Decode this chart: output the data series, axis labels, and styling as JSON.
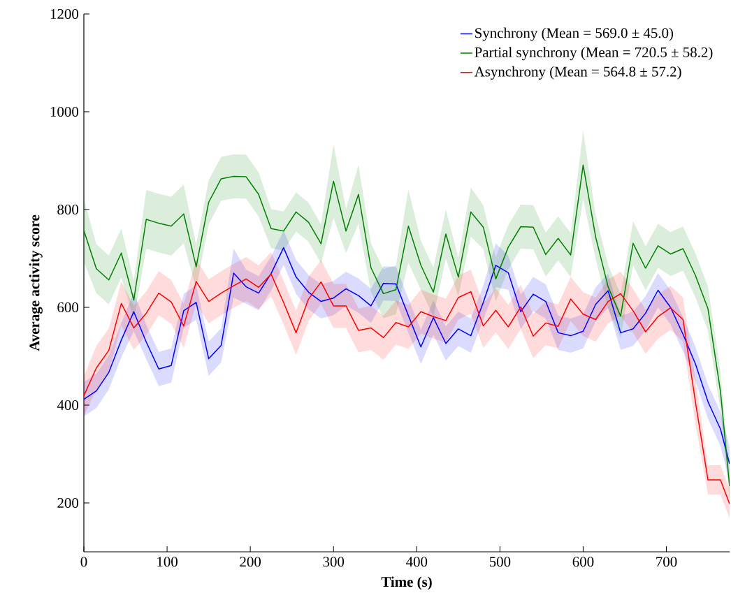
{
  "chart_data": {
    "type": "line",
    "xlabel": "Time (s)",
    "ylabel": "Average activity score",
    "x": [
      0,
      15,
      30,
      45,
      60,
      75,
      90,
      105,
      120,
      135,
      150,
      165,
      180,
      195,
      210,
      225,
      240,
      255,
      270,
      285,
      300,
      315,
      330,
      345,
      360,
      375,
      390,
      405,
      420,
      435,
      450,
      465,
      480,
      495,
      510,
      525,
      540,
      555,
      570,
      585,
      600,
      615,
      630,
      645,
      660,
      675,
      690,
      705,
      720,
      735,
      750,
      765,
      776
    ],
    "xlim": [
      0,
      776
    ],
    "ylim": [
      100,
      1200
    ],
    "xticks": [
      0,
      100,
      200,
      300,
      400,
      500,
      600,
      700
    ],
    "yticks": [
      200,
      400,
      600,
      800,
      1000,
      1200
    ],
    "grid": false,
    "legend": "top right",
    "line_style": "solid",
    "marker": "none",
    "series": [
      {
        "name": "Synchrony (Mean = 569.0 ± 45.0)",
        "color": "#0000ff",
        "values": [
          412,
          429,
          467,
          533,
          591,
          529,
          474,
          481,
          593,
          610,
          495,
          522,
          670,
          642,
          629,
          669,
          722,
          662,
          631,
          612,
          619,
          638,
          624,
          603,
          649,
          648,
          583,
          519,
          579,
          526,
          556,
          542,
          610,
          686,
          671,
          591,
          627,
          612,
          548,
          542,
          551,
          606,
          634,
          548,
          556,
          588,
          635,
          600,
          545,
          484,
          407,
          351,
          280
        ],
        "lower": [
          377,
          394,
          432,
          498,
          551,
          494,
          439,
          446,
          558,
          575,
          460,
          487,
          620,
          607,
          594,
          634,
          687,
          627,
          596,
          577,
          584,
          603,
          589,
          568,
          614,
          613,
          548,
          484,
          544,
          491,
          521,
          507,
          575,
          641,
          636,
          556,
          592,
          577,
          513,
          507,
          516,
          571,
          599,
          513,
          521,
          553,
          600,
          565,
          510,
          449,
          372,
          316,
          245
        ],
        "upper": [
          447,
          464,
          502,
          568,
          631,
          564,
          509,
          516,
          628,
          645,
          530,
          557,
          720,
          677,
          664,
          704,
          757,
          697,
          666,
          647,
          654,
          673,
          659,
          638,
          684,
          683,
          618,
          554,
          614,
          561,
          591,
          577,
          645,
          731,
          706,
          626,
          662,
          647,
          583,
          577,
          586,
          641,
          669,
          583,
          591,
          623,
          670,
          635,
          580,
          519,
          442,
          386,
          315
        ]
      },
      {
        "name": "Partial synchrony (Mean = 720.5 ± 58.2)",
        "color": "#008000",
        "values": [
          757,
          679,
          656,
          711,
          615,
          780,
          772,
          766,
          791,
          683,
          815,
          863,
          868,
          867,
          831,
          761,
          756,
          795,
          774,
          730,
          858,
          756,
          831,
          681,
          628,
          636,
          766,
          686,
          631,
          750,
          662,
          795,
          764,
          658,
          723,
          765,
          764,
          708,
          741,
          707,
          891,
          744,
          642,
          582,
          731,
          680,
          726,
          709,
          720,
          665,
          597,
          428,
          234
        ],
        "lower": [
          692,
          629,
          606,
          661,
          575,
          720,
          712,
          706,
          731,
          638,
          770,
          818,
          823,
          822,
          786,
          721,
          716,
          755,
          734,
          690,
          783,
          711,
          771,
          631,
          578,
          586,
          691,
          636,
          581,
          700,
          622,
          745,
          719,
          613,
          678,
          720,
          719,
          663,
          696,
          662,
          821,
          699,
          597,
          537,
          686,
          635,
          681,
          664,
          675,
          620,
          552,
          388,
          204
        ],
        "upper": [
          822,
          729,
          706,
          761,
          655,
          840,
          832,
          826,
          851,
          728,
          860,
          908,
          913,
          912,
          876,
          801,
          796,
          835,
          814,
          770,
          933,
          801,
          891,
          731,
          678,
          686,
          841,
          736,
          681,
          800,
          702,
          845,
          809,
          703,
          768,
          810,
          809,
          753,
          786,
          752,
          961,
          789,
          687,
          627,
          776,
          725,
          771,
          754,
          765,
          710,
          642,
          468,
          264
        ]
      },
      {
        "name": "Asynchrony (Mean = 564.8 ± 57.2)",
        "color": "#ff0000",
        "values": [
          419,
          476,
          512,
          608,
          558,
          588,
          629,
          611,
          562,
          653,
          612,
          629,
          644,
          658,
          641,
          668,
          610,
          548,
          617,
          652,
          603,
          603,
          553,
          558,
          538,
          569,
          560,
          591,
          581,
          573,
          620,
          632,
          562,
          594,
          560,
          601,
          541,
          568,
          561,
          617,
          586,
          575,
          612,
          628,
          593,
          550,
          581,
          599,
          575,
          406,
          247,
          247,
          198
        ],
        "lower": [
          379,
          431,
          467,
          563,
          513,
          543,
          584,
          566,
          517,
          608,
          567,
          584,
          599,
          613,
          596,
          623,
          565,
          503,
          572,
          607,
          558,
          558,
          508,
          513,
          493,
          524,
          515,
          546,
          536,
          528,
          575,
          587,
          517,
          549,
          515,
          556,
          496,
          523,
          516,
          572,
          541,
          530,
          567,
          583,
          548,
          505,
          536,
          554,
          530,
          361,
          217,
          217,
          168
        ],
        "upper": [
          459,
          521,
          557,
          653,
          603,
          633,
          674,
          656,
          607,
          698,
          657,
          674,
          689,
          703,
          686,
          713,
          655,
          593,
          662,
          697,
          648,
          648,
          598,
          603,
          583,
          614,
          605,
          636,
          626,
          618,
          665,
          677,
          607,
          639,
          605,
          646,
          586,
          613,
          606,
          662,
          631,
          620,
          657,
          673,
          638,
          595,
          626,
          644,
          620,
          451,
          277,
          277,
          228
        ]
      }
    ]
  }
}
